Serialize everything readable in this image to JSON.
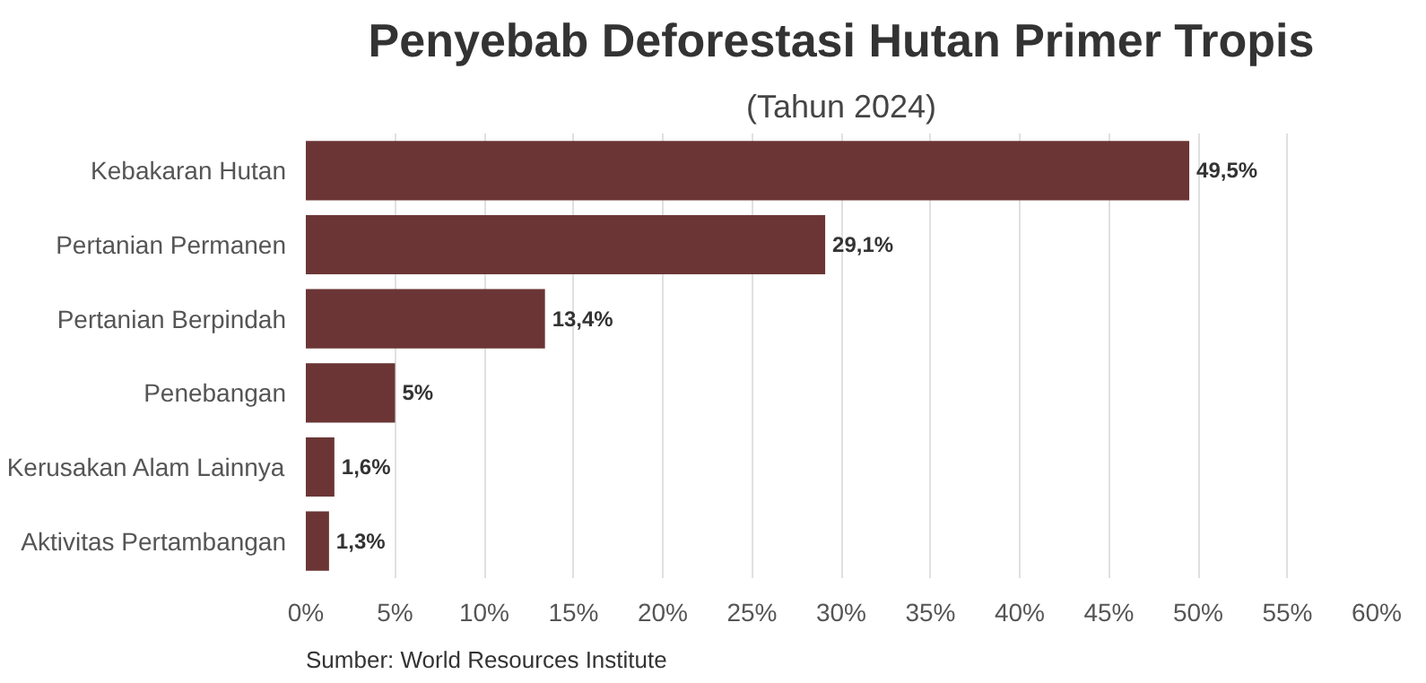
{
  "chart_data": {
    "type": "bar",
    "orientation": "horizontal",
    "title": "Penyebab Deforestasi Hutan Primer Tropis",
    "subtitle": "(Tahun 2024)",
    "categories": [
      "Kebakaran Hutan",
      "Pertanian Permanen",
      "Pertanian Berpindah",
      "Penebangan",
      "Kerusakan Alam Lainnya",
      "Aktivitas Pertambangan"
    ],
    "values": [
      49.5,
      29.1,
      13.4,
      5,
      1.6,
      1.3
    ],
    "value_labels": [
      "49,5%",
      "29,1%",
      "13,4%",
      "5%",
      "1,6%",
      "1,3%"
    ],
    "color": "#6b3535",
    "xlim": [
      0,
      60
    ],
    "xticks": [
      {
        "value": 0,
        "label": "0%"
      },
      {
        "value": 5,
        "label": "5%"
      },
      {
        "value": 10,
        "label": "10%"
      },
      {
        "value": 15,
        "label": "15%"
      },
      {
        "value": 20,
        "label": "20%"
      },
      {
        "value": 25,
        "label": "25%"
      },
      {
        "value": 30,
        "label": "30%"
      },
      {
        "value": 35,
        "label": "35%"
      },
      {
        "value": 40,
        "label": "40%"
      },
      {
        "value": 45,
        "label": "45%"
      },
      {
        "value": 50,
        "label": "50%"
      },
      {
        "value": 55,
        "label": "55%"
      },
      {
        "value": 60,
        "label": "60%"
      }
    ],
    "grid": "x",
    "annotations": [
      "Sumber: World Resources Institute"
    ]
  }
}
